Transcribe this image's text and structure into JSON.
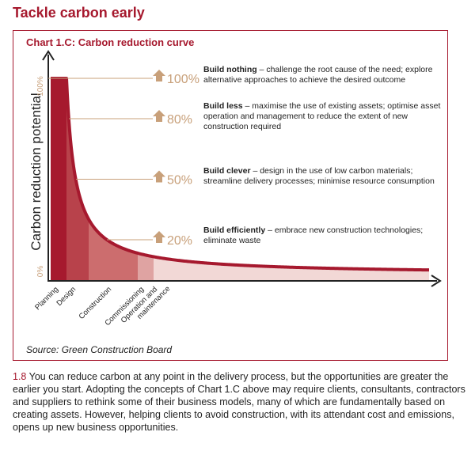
{
  "page": {
    "title": "Tackle carbon early"
  },
  "chart_data": {
    "type": "area",
    "title": "Chart 1.C: Carbon reduction curve",
    "ylabel": "Carbon reduction potential",
    "y_ticks": [
      "100%",
      "0%"
    ],
    "ylim": [
      0,
      100
    ],
    "categories": [
      "Planning",
      "Design",
      "Construction",
      "Commissioning",
      "Operation and maintenance"
    ],
    "segment_colors": [
      "#a6192e",
      "#b8424b",
      "#cc6d6e",
      "#dfa3a2",
      "#f2d8d6"
    ],
    "curve_color": "#a6192e",
    "axis_color": "#222222",
    "arrow_color": "#c8a07a",
    "annotations": [
      {
        "percent": "100%",
        "value": 100,
        "bold": "Build nothing",
        "text": " – challenge the root cause of the need; explore alternative approaches to achieve the desired outcome"
      },
      {
        "percent": "80%",
        "value": 80,
        "bold": "Build less",
        "text": " – maximise the use of existing assets; optimise asset operation and management to reduce the extent of new construction required"
      },
      {
        "percent": "50%",
        "value": 50,
        "bold": "Build clever",
        "text": " – design in the use of low carbon materials; streamline delivery processes; minimise resource consumption"
      },
      {
        "percent": "20%",
        "value": 20,
        "bold": "Build efficiently",
        "text": " – embrace new construction technologies; eliminate waste"
      }
    ],
    "source": "Source: Green Construction Board"
  },
  "paragraph": {
    "number": "1.8",
    "text": " You can reduce carbon at any point in the delivery process, but the opportunities are greater the earlier you start. Adopting the concepts of Chart 1.C above may require clients, consultants, contractors and suppliers to rethink some of their business models, many of which are fundamentally based on creating assets. However, helping clients to avoid construction, with its attendant cost and emissions, opens up new business opportunities."
  }
}
